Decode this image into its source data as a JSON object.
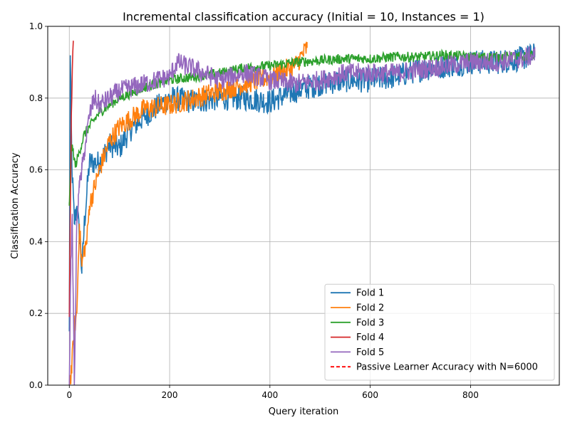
{
  "chart_data": {
    "type": "line",
    "title": "Incremental classification accuracy (Initial = 10, Instances = 1)",
    "xlabel": "Query iteration",
    "ylabel": "Classification Accuracy",
    "xlim": [
      -43,
      977
    ],
    "ylim": [
      0.0,
      1.0
    ],
    "xticks": [
      0,
      200,
      400,
      600,
      800
    ],
    "yticks": [
      0.0,
      0.2,
      0.4,
      0.6,
      0.8,
      1.0
    ],
    "grid": true,
    "legend_position": "lower-right",
    "series": [
      {
        "name": "Fold 1",
        "color": "#1f77b4",
        "noise": 0.035,
        "x": [
          0,
          2,
          5,
          10,
          15,
          20,
          25,
          30,
          40,
          60,
          80,
          100,
          120,
          150,
          200,
          250,
          300,
          350,
          400,
          450,
          500,
          550,
          600,
          650,
          700,
          750,
          800,
          850,
          900,
          928
        ],
        "y": [
          0.15,
          0.91,
          0.62,
          0.45,
          0.5,
          0.42,
          0.32,
          0.45,
          0.62,
          0.62,
          0.67,
          0.66,
          0.71,
          0.75,
          0.8,
          0.79,
          0.8,
          0.8,
          0.79,
          0.82,
          0.84,
          0.85,
          0.85,
          0.86,
          0.88,
          0.89,
          0.9,
          0.9,
          0.91,
          0.92
        ]
      },
      {
        "name": "Fold 2",
        "color": "#ff7f0e",
        "noise": 0.03,
        "x": [
          0,
          5,
          10,
          15,
          20,
          25,
          30,
          35,
          40,
          50,
          60,
          80,
          100,
          130,
          150,
          200,
          250,
          300,
          350,
          400,
          450,
          474
        ],
        "y": [
          0.0,
          0.05,
          0.16,
          0.2,
          0.45,
          0.33,
          0.38,
          0.4,
          0.5,
          0.55,
          0.6,
          0.68,
          0.72,
          0.75,
          0.77,
          0.78,
          0.8,
          0.82,
          0.84,
          0.86,
          0.89,
          0.94
        ]
      },
      {
        "name": "Fold 3",
        "color": "#2ca02c",
        "noise": 0.014,
        "x": [
          0,
          3,
          5,
          8,
          12,
          20,
          30,
          40,
          60,
          100,
          150,
          200,
          250,
          300,
          350,
          400,
          450,
          500,
          550,
          600,
          650,
          700,
          750,
          800,
          850,
          900,
          928
        ],
        "y": [
          0.5,
          0.63,
          0.66,
          0.65,
          0.61,
          0.65,
          0.7,
          0.72,
          0.76,
          0.8,
          0.83,
          0.85,
          0.86,
          0.87,
          0.885,
          0.89,
          0.9,
          0.905,
          0.91,
          0.91,
          0.915,
          0.915,
          0.92,
          0.915,
          0.915,
          0.915,
          0.92
        ]
      },
      {
        "name": "Fold 4",
        "color": "#d62728",
        "noise": 0.0,
        "x": [
          0,
          1,
          2,
          3,
          4,
          5,
          6,
          7,
          8
        ],
        "y": [
          0.19,
          0.35,
          0.48,
          0.6,
          0.75,
          0.8,
          0.88,
          0.93,
          0.96
        ]
      },
      {
        "name": "Fold 5",
        "color": "#9467bd",
        "noise": 0.028,
        "x": [
          0,
          3,
          6,
          10,
          12,
          15,
          18,
          20,
          25,
          30,
          40,
          50,
          60,
          80,
          100,
          150,
          200,
          215,
          250,
          300,
          350,
          400,
          450,
          500,
          550,
          600,
          650,
          700,
          750,
          800,
          850,
          900,
          928
        ],
        "y": [
          0.0,
          0.35,
          0.45,
          0.0,
          0.17,
          0.45,
          0.53,
          0.55,
          0.6,
          0.65,
          0.75,
          0.8,
          0.78,
          0.8,
          0.82,
          0.84,
          0.86,
          0.9,
          0.88,
          0.85,
          0.87,
          0.85,
          0.84,
          0.85,
          0.87,
          0.87,
          0.87,
          0.88,
          0.89,
          0.9,
          0.9,
          0.91,
          0.92
        ]
      },
      {
        "name": "Passive Learner Accuracy with N=6000",
        "color": "#ff0000",
        "dashed": true,
        "x": [],
        "y": []
      }
    ]
  }
}
